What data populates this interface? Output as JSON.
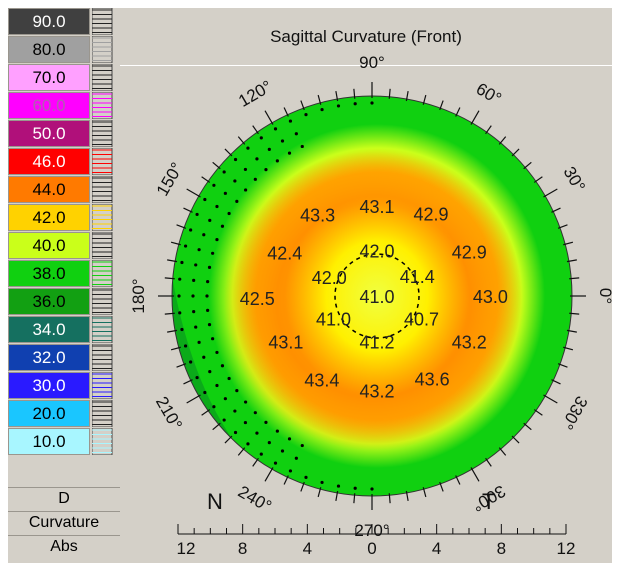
{
  "scale": {
    "items": [
      {
        "label": "90.0",
        "color": "#404040",
        "text_color": "#ffffff"
      },
      {
        "label": "80.0",
        "color": "#a0a0a0",
        "text_color": "#000000"
      },
      {
        "label": "70.0",
        "color": "#ffa0ff",
        "text_color": "#000000"
      },
      {
        "label": "60.0",
        "color": "#ff00ff",
        "text_color": "#b060b0"
      },
      {
        "label": "50.0",
        "color": "#b0107a",
        "text_color": "#ffffff"
      },
      {
        "label": "46.0",
        "color": "#ff0000",
        "text_color": "#ffffff"
      },
      {
        "label": "44.0",
        "color": "#ff7a00",
        "text_color": "#000000"
      },
      {
        "label": "42.0",
        "color": "#ffd200",
        "text_color": "#000000"
      },
      {
        "label": "40.0",
        "color": "#caff1a",
        "text_color": "#000000"
      },
      {
        "label": "38.0",
        "color": "#10d010",
        "text_color": "#000000"
      },
      {
        "label": "36.0",
        "color": "#12a012",
        "text_color": "#000000"
      },
      {
        "label": "34.0",
        "color": "#157060",
        "text_color": "#ffffff"
      },
      {
        "label": "32.0",
        "color": "#1040b0",
        "text_color": "#ffffff"
      },
      {
        "label": "30.0",
        "color": "#2a1aff",
        "text_color": "#ffffff"
      },
      {
        "label": "20.0",
        "color": "#1ac6ff",
        "text_color": "#000000"
      },
      {
        "label": "10.0",
        "color": "#a8f6ff",
        "text_color": "#000000"
      }
    ],
    "unit": "D",
    "type_label": "Curvature",
    "mode_label": "Abs"
  },
  "map": {
    "title": "Sagittal Curvature (Front)",
    "axis_labels": [
      {
        "text": "90°",
        "angle": 90
      },
      {
        "text": "60°",
        "angle": 60
      },
      {
        "text": "30°",
        "angle": 30
      },
      {
        "text": "0°",
        "angle": 0
      },
      {
        "text": "330°",
        "angle": 330
      },
      {
        "text": "300°",
        "angle": 300
      },
      {
        "text": "270°",
        "angle": 270
      },
      {
        "text": "240°",
        "angle": 240
      },
      {
        "text": "210°",
        "angle": 210
      },
      {
        "text": "180°",
        "angle": 180
      },
      {
        "text": "150°",
        "angle": 150
      },
      {
        "text": "120°",
        "angle": 120
      }
    ],
    "nasal_label": "N",
    "temporal_label": "T",
    "values": [
      {
        "text": "43.1",
        "dx": 0,
        "dy": -8.5
      },
      {
        "text": "43.3",
        "dx": -5.6,
        "dy": -7.7
      },
      {
        "text": "42.9",
        "dx": 5.1,
        "dy": -7.8
      },
      {
        "text": "42.4",
        "dx": -8.7,
        "dy": -4.1
      },
      {
        "text": "42.0",
        "dx": 0,
        "dy": -4.3
      },
      {
        "text": "42.9",
        "dx": 8.7,
        "dy": -4.2
      },
      {
        "text": "42.0",
        "dx": -4.5,
        "dy": -1.8
      },
      {
        "text": "41.4",
        "dx": 3.8,
        "dy": -1.9
      },
      {
        "text": "42.5",
        "dx": -11.3,
        "dy": 0.2
      },
      {
        "text": "41.0",
        "dx": 0,
        "dy": 0
      },
      {
        "text": "43.0",
        "dx": 10.7,
        "dy": 0
      },
      {
        "text": "41.0",
        "dx": -4.1,
        "dy": 2.1
      },
      {
        "text": "40.7",
        "dx": 4.2,
        "dy": 2.1
      },
      {
        "text": "43.1",
        "dx": -8.6,
        "dy": 4.3
      },
      {
        "text": "41.2",
        "dx": 0,
        "dy": 4.3
      },
      {
        "text": "43.2",
        "dx": 8.7,
        "dy": 4.3
      },
      {
        "text": "43.4",
        "dx": -5.2,
        "dy": 7.9
      },
      {
        "text": "43.6",
        "dx": 5.2,
        "dy": 7.8
      },
      {
        "text": "43.2",
        "dx": 0,
        "dy": 8.9
      }
    ],
    "x_ticks": [
      "12",
      "8",
      "4",
      "0",
      "4",
      "8",
      "12"
    ]
  }
}
